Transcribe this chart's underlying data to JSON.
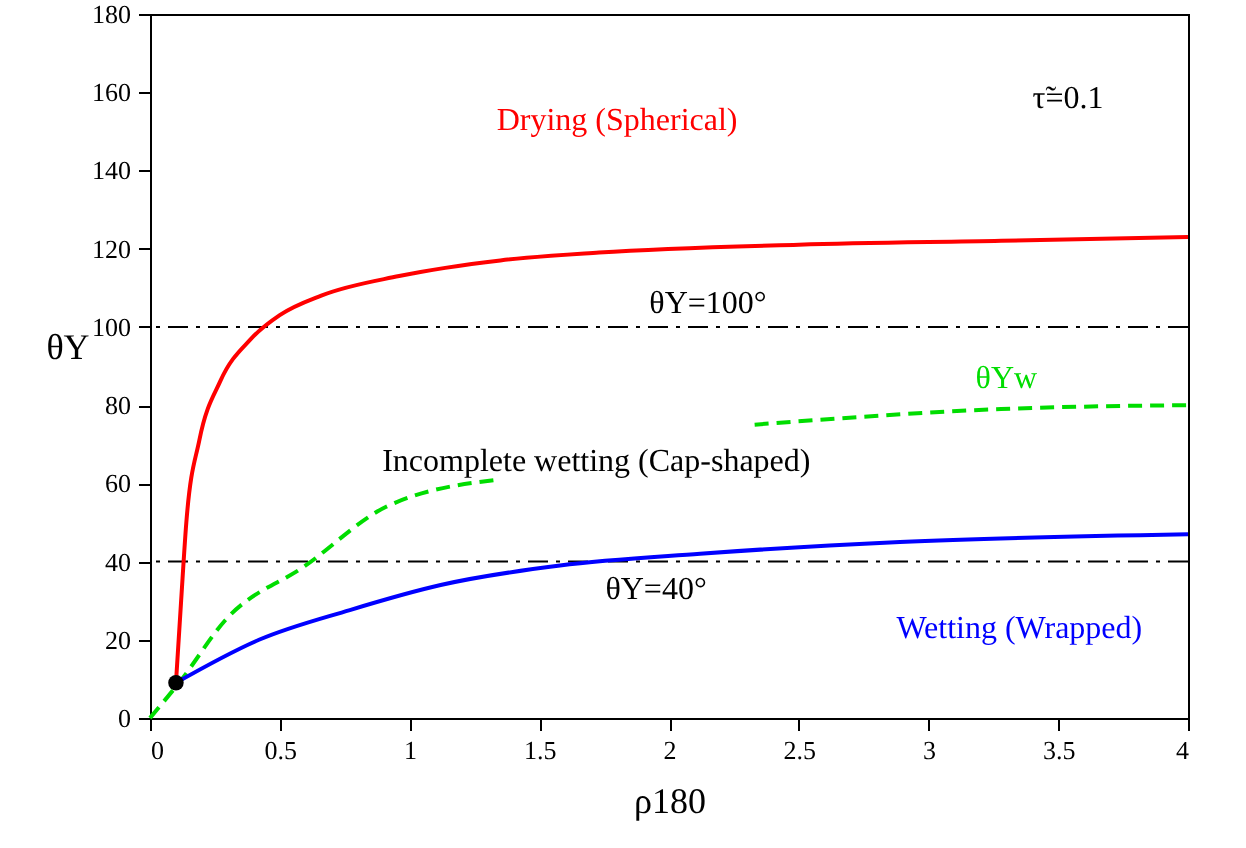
{
  "chart_data": {
    "type": "line",
    "xlabel": "ρ180",
    "ylabel": "θY",
    "xlim": [
      0,
      4
    ],
    "ylim": [
      0,
      180
    ],
    "xticks": [
      0,
      0.5,
      1,
      1.5,
      2,
      2.5,
      3,
      3.5,
      4
    ],
    "yticks": [
      0,
      20,
      40,
      60,
      80,
      100,
      120,
      140,
      160,
      180
    ],
    "grid": false,
    "series": [
      {
        "name": "Drying (Spherical)",
        "color": "#ff0000",
        "line_style": "solid",
        "x": [
          0.1,
          0.12,
          0.14,
          0.19,
          0.27,
          0.39,
          0.5,
          0.66,
          0.96,
          1.35,
          1.73,
          2.5,
          3.28,
          4
        ],
        "values": [
          9,
          30,
          50,
          71,
          86,
          97,
          103,
          108,
          113,
          117,
          119,
          121,
          122,
          123
        ]
      },
      {
        "name": "θYw",
        "color": "#00dd00",
        "line_style": "dashed",
        "x": [
          0,
          0.12,
          0.29,
          0.6,
          0.91,
          1.35,
          1.8,
          2.33,
          3.28,
          4
        ],
        "values": [
          0,
          9.7,
          25,
          39,
          54,
          61,
          null,
          75,
          79,
          80
        ]
      },
      {
        "name": "Wetting (Wrapped)",
        "color": "#0000ff",
        "line_style": "solid",
        "x": [
          0.1,
          0.42,
          0.77,
          1.12,
          1.58,
          2.12,
          2.89,
          4
        ],
        "values": [
          9,
          20,
          27.6,
          34,
          39,
          42,
          45,
          47
        ]
      },
      {
        "type": "scatter",
        "color": "#000000",
        "marker": "circle",
        "x": [
          0.1
        ],
        "values": [
          9
        ]
      }
    ],
    "ref_lines": [
      {
        "axis": "y",
        "value": 100,
        "label": "θY=100°",
        "color": "#000000",
        "line_style": "dashdot"
      },
      {
        "axis": "y",
        "value": 40,
        "label": "θY=40°",
        "color": "#000000",
        "line_style": "dashdot"
      }
    ],
    "annotations": [
      "Incomplete wetting (Cap-shaped)",
      "τ̃=0.1"
    ]
  }
}
